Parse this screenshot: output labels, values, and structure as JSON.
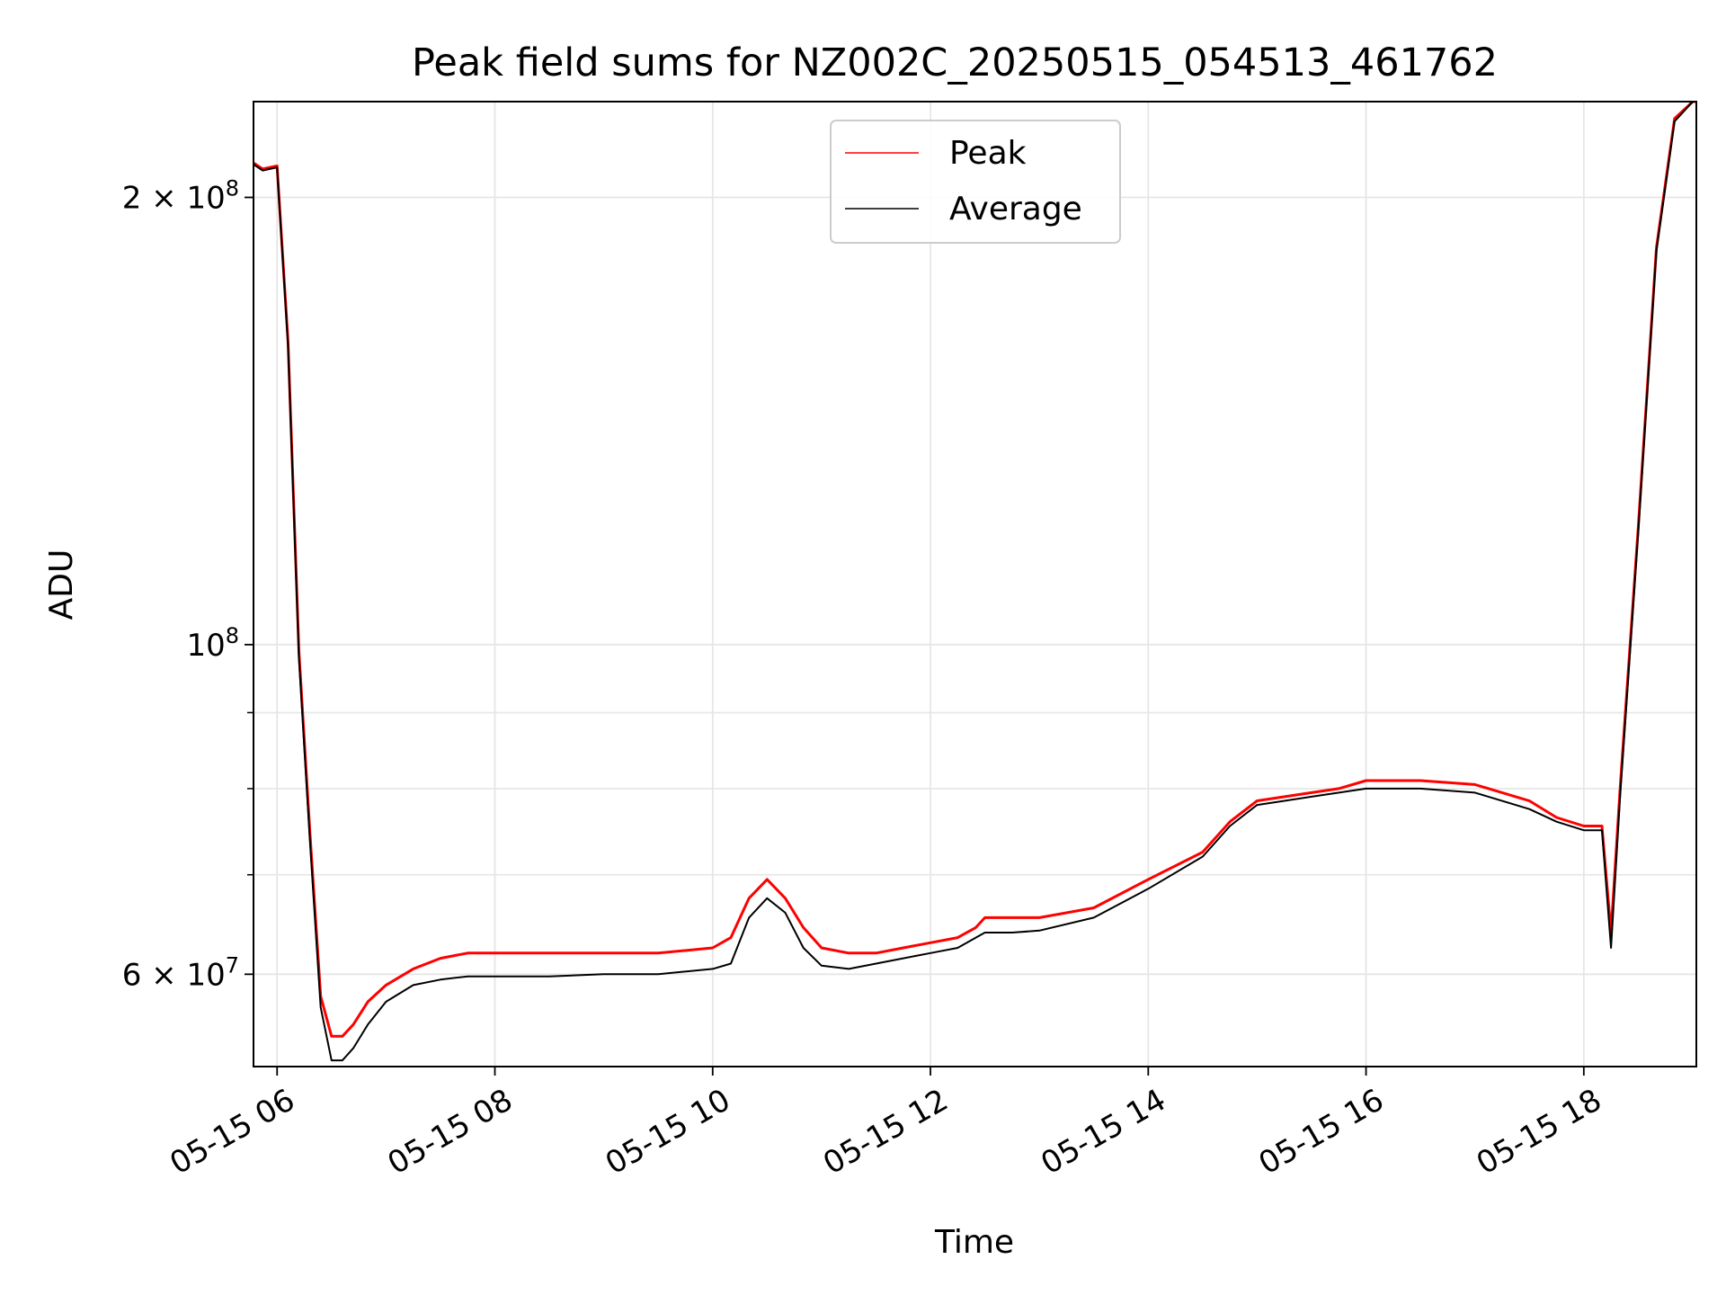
{
  "chart_data": {
    "type": "line",
    "title": "Peak field sums for NZ002C_20250515_054513_461762",
    "xlabel": "Time",
    "ylabel": "ADU",
    "yscale": "log",
    "grid": true,
    "legend_position": "top-center",
    "x_tick_labels": [
      "05-15 06",
      "05-15 08",
      "05-15 10",
      "05-15 12",
      "05-15 14",
      "05-15 16",
      "05-15 18"
    ],
    "y_tick_labels": [
      {
        "value": 60000000,
        "mantissa": "6",
        "exp": "7"
      },
      {
        "value": 100000000,
        "mantissa": "",
        "exp": "8"
      },
      {
        "value": 200000000,
        "mantissa": "2",
        "exp": "8"
      }
    ],
    "xlim": [
      "05-15 05:47",
      "05-15 19:02"
    ],
    "ylim": [
      52000000,
      232000000
    ],
    "series": [
      {
        "name": "Peak",
        "color": "#ff0000",
        "x": [
          "05-15 05:47",
          "05-15 05:52",
          "05-15 06:00",
          "05-15 06:06",
          "05-15 06:12",
          "05-15 06:18",
          "05-15 06:24",
          "05-15 06:30",
          "05-15 06:36",
          "05-15 06:42",
          "05-15 06:50",
          "05-15 07:00",
          "05-15 07:15",
          "05-15 07:30",
          "05-15 07:45",
          "05-15 08:00",
          "05-15 08:30",
          "05-15 09:00",
          "05-15 09:30",
          "05-15 10:00",
          "05-15 10:10",
          "05-15 10:20",
          "05-15 10:30",
          "05-15 10:40",
          "05-15 10:50",
          "05-15 11:00",
          "05-15 11:15",
          "05-15 11:30",
          "05-15 11:45",
          "05-15 12:00",
          "05-15 12:15",
          "05-15 12:25",
          "05-15 12:30",
          "05-15 12:45",
          "05-15 13:00",
          "05-15 13:30",
          "05-15 14:00",
          "05-15 14:30",
          "05-15 14:45",
          "05-15 15:00",
          "05-15 15:30",
          "05-15 15:45",
          "05-15 16:00",
          "05-15 16:30",
          "05-15 17:00",
          "05-15 17:30",
          "05-15 17:45",
          "05-15 18:00",
          "05-15 18:10",
          "05-15 18:15",
          "05-15 18:20",
          "05-15 18:30",
          "05-15 18:40",
          "05-15 18:50",
          "05-15 19:00",
          "05-15 19:02"
        ],
        "y": [
          211000000,
          209000000,
          210000000,
          160000000,
          99000000,
          75000000,
          58000000,
          54500000,
          54500000,
          55500000,
          57500000,
          59000000,
          60500000,
          61500000,
          62000000,
          62000000,
          62000000,
          62000000,
          62000000,
          62500000,
          63500000,
          67500000,
          69500000,
          67500000,
          64500000,
          62500000,
          62000000,
          62000000,
          62500000,
          63000000,
          63500000,
          64500000,
          65500000,
          65500000,
          65500000,
          66500000,
          69500000,
          72500000,
          76000000,
          78500000,
          79500000,
          80000000,
          81000000,
          81000000,
          80500000,
          78500000,
          76500000,
          75500000,
          75500000,
          64000000,
          80000000,
          120000000,
          185000000,
          226000000,
          232000000,
          232000000
        ]
      },
      {
        "name": "Average",
        "color": "#000000",
        "x": [
          "05-15 05:47",
          "05-15 05:52",
          "05-15 06:00",
          "05-15 06:06",
          "05-15 06:12",
          "05-15 06:18",
          "05-15 06:24",
          "05-15 06:30",
          "05-15 06:36",
          "05-15 06:42",
          "05-15 06:50",
          "05-15 07:00",
          "05-15 07:15",
          "05-15 07:30",
          "05-15 07:45",
          "05-15 08:00",
          "05-15 08:30",
          "05-15 09:00",
          "05-15 09:30",
          "05-15 10:00",
          "05-15 10:10",
          "05-15 10:20",
          "05-15 10:30",
          "05-15 10:40",
          "05-15 10:50",
          "05-15 11:00",
          "05-15 11:15",
          "05-15 11:30",
          "05-15 11:45",
          "05-15 12:00",
          "05-15 12:15",
          "05-15 12:25",
          "05-15 12:30",
          "05-15 12:45",
          "05-15 13:00",
          "05-15 13:30",
          "05-15 14:00",
          "05-15 14:30",
          "05-15 14:45",
          "05-15 15:00",
          "05-15 15:30",
          "05-15 15:45",
          "05-15 16:00",
          "05-15 16:30",
          "05-15 17:00",
          "05-15 17:30",
          "05-15 17:45",
          "05-15 18:00",
          "05-15 18:10",
          "05-15 18:15",
          "05-15 18:20",
          "05-15 18:30",
          "05-15 18:40",
          "05-15 18:50",
          "05-15 19:00",
          "05-15 19:02"
        ],
        "y": [
          210500000,
          208500000,
          209500000,
          159000000,
          98000000,
          74000000,
          57000000,
          52500000,
          52500000,
          53500000,
          55500000,
          57500000,
          59000000,
          59500000,
          59800000,
          59800000,
          59800000,
          60000000,
          60000000,
          60500000,
          61000000,
          65500000,
          67500000,
          66000000,
          62500000,
          60800000,
          60500000,
          61000000,
          61500000,
          62000000,
          62500000,
          63500000,
          64000000,
          64000000,
          64200000,
          65500000,
          68500000,
          72000000,
          75500000,
          78000000,
          79000000,
          79500000,
          80000000,
          80000000,
          79500000,
          77500000,
          76000000,
          75000000,
          75000000,
          62500000,
          79000000,
          119000000,
          184000000,
          225000000,
          232000000,
          232000000
        ]
      }
    ]
  }
}
